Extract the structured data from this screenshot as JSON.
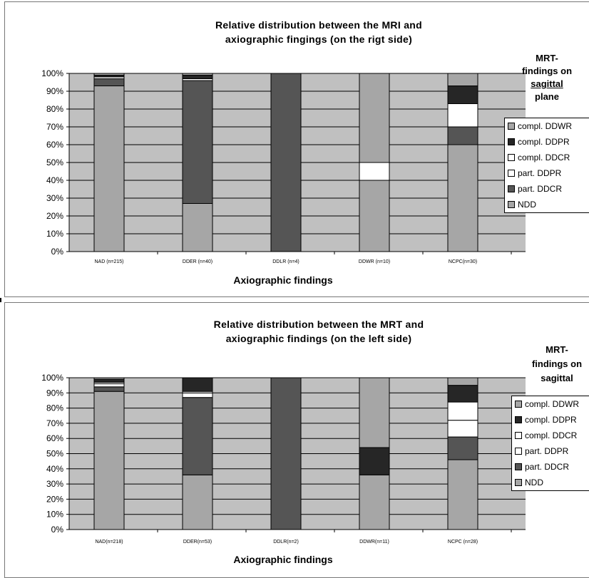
{
  "chart_data": [
    {
      "type": "bar",
      "stacked": true,
      "normalized": true,
      "title": "Relative distribution between the MRI and axiographic fingings  (on the rigt side)",
      "title_lines": [
        "Relative distribution between the MRI and",
        "axiographic fingings  (on the rigt side)"
      ],
      "xlabel": "Axiographic findings",
      "ylabel": "",
      "categories": [
        "NAD (n=215)",
        "DDER (n=40)",
        "DDLR (n=4)",
        "DDWR (n=10)",
        "NCPC(n=30)"
      ],
      "yticks": [
        "0%",
        "10%",
        "20%",
        "30%",
        "40%",
        "50%",
        "60%",
        "70%",
        "80%",
        "90%",
        "100%"
      ],
      "ylim": [
        0,
        100
      ],
      "grid": true,
      "legend_position": "right",
      "legend_title_lines": [
        "MRT-",
        "findings on",
        "sagittal",
        "plane"
      ],
      "series": [
        {
          "name": "NDD",
          "values": [
            93,
            27,
            0,
            40,
            60
          ]
        },
        {
          "name": "part. DDCR",
          "values": [
            4,
            69,
            100,
            0,
            10
          ]
        },
        {
          "name": "part. DDPR",
          "values": [
            0,
            0,
            0,
            10,
            0
          ]
        },
        {
          "name": "compl. DDCR",
          "values": [
            1,
            1,
            0,
            0,
            13
          ]
        },
        {
          "name": "compl. DDPR",
          "values": [
            1,
            2,
            0,
            0,
            10
          ]
        },
        {
          "name": "compl. DDWR",
          "values": [
            1,
            1,
            0,
            50,
            7
          ]
        }
      ],
      "legend_order": [
        "compl. DDWR",
        "compl. DDPR",
        "compl. DDCR",
        "part. DDPR",
        "part. DDCR",
        "NDD"
      ]
    },
    {
      "type": "bar",
      "stacked": true,
      "normalized": true,
      "title": "Relative distribution between the MRT and axiographic findings (on the left side)",
      "title_lines": [
        "Relative distribution between the MRT and",
        "axiographic findings (on the left side)"
      ],
      "xlabel": "Axiographic findings",
      "ylabel": "",
      "categories": [
        "NAD(n=218)",
        "DDER(n=53)",
        "DDLR(n=2)",
        "DDWR(n=11)",
        "NCPC (n=28)"
      ],
      "yticks": [
        "0%",
        "10%",
        "20%",
        "30%",
        "40%",
        "50%",
        "60%",
        "70%",
        "80%",
        "90%",
        "100%"
      ],
      "ylim": [
        0,
        100
      ],
      "grid": true,
      "legend_position": "right",
      "legend_title_lines": [
        "MRT-",
        "findings on",
        "sagittal"
      ],
      "series": [
        {
          "name": "NDD",
          "values": [
            91,
            36,
            0,
            36,
            46
          ]
        },
        {
          "name": "part. DDCR",
          "values": [
            3,
            51,
            100,
            0,
            15
          ]
        },
        {
          "name": "part. DDPR",
          "values": [
            2,
            3,
            0,
            0,
            11
          ]
        },
        {
          "name": "compl. DDCR",
          "values": [
            1,
            1,
            0,
            0,
            12
          ]
        },
        {
          "name": "compl. DDPR",
          "values": [
            2,
            9,
            0,
            18,
            11
          ]
        },
        {
          "name": "compl. DDWR",
          "values": [
            1,
            0,
            0,
            46,
            5
          ]
        }
      ],
      "legend_order": [
        "compl. DDWR",
        "compl. DDPR",
        "compl. DDCR",
        "part. DDPR",
        "part. DDCR",
        "NDD"
      ]
    }
  ],
  "colors": {
    "plot_background": "#c0c0c0",
    "gridline": "#000000",
    "NDD": "#a6a6a6",
    "part. DDCR": "#555555",
    "part. DDPR": "#ffffff",
    "compl. DDCR": "#ffffff",
    "compl. DDPR": "#262626",
    "compl. DDWR": "#a6a6a6"
  }
}
